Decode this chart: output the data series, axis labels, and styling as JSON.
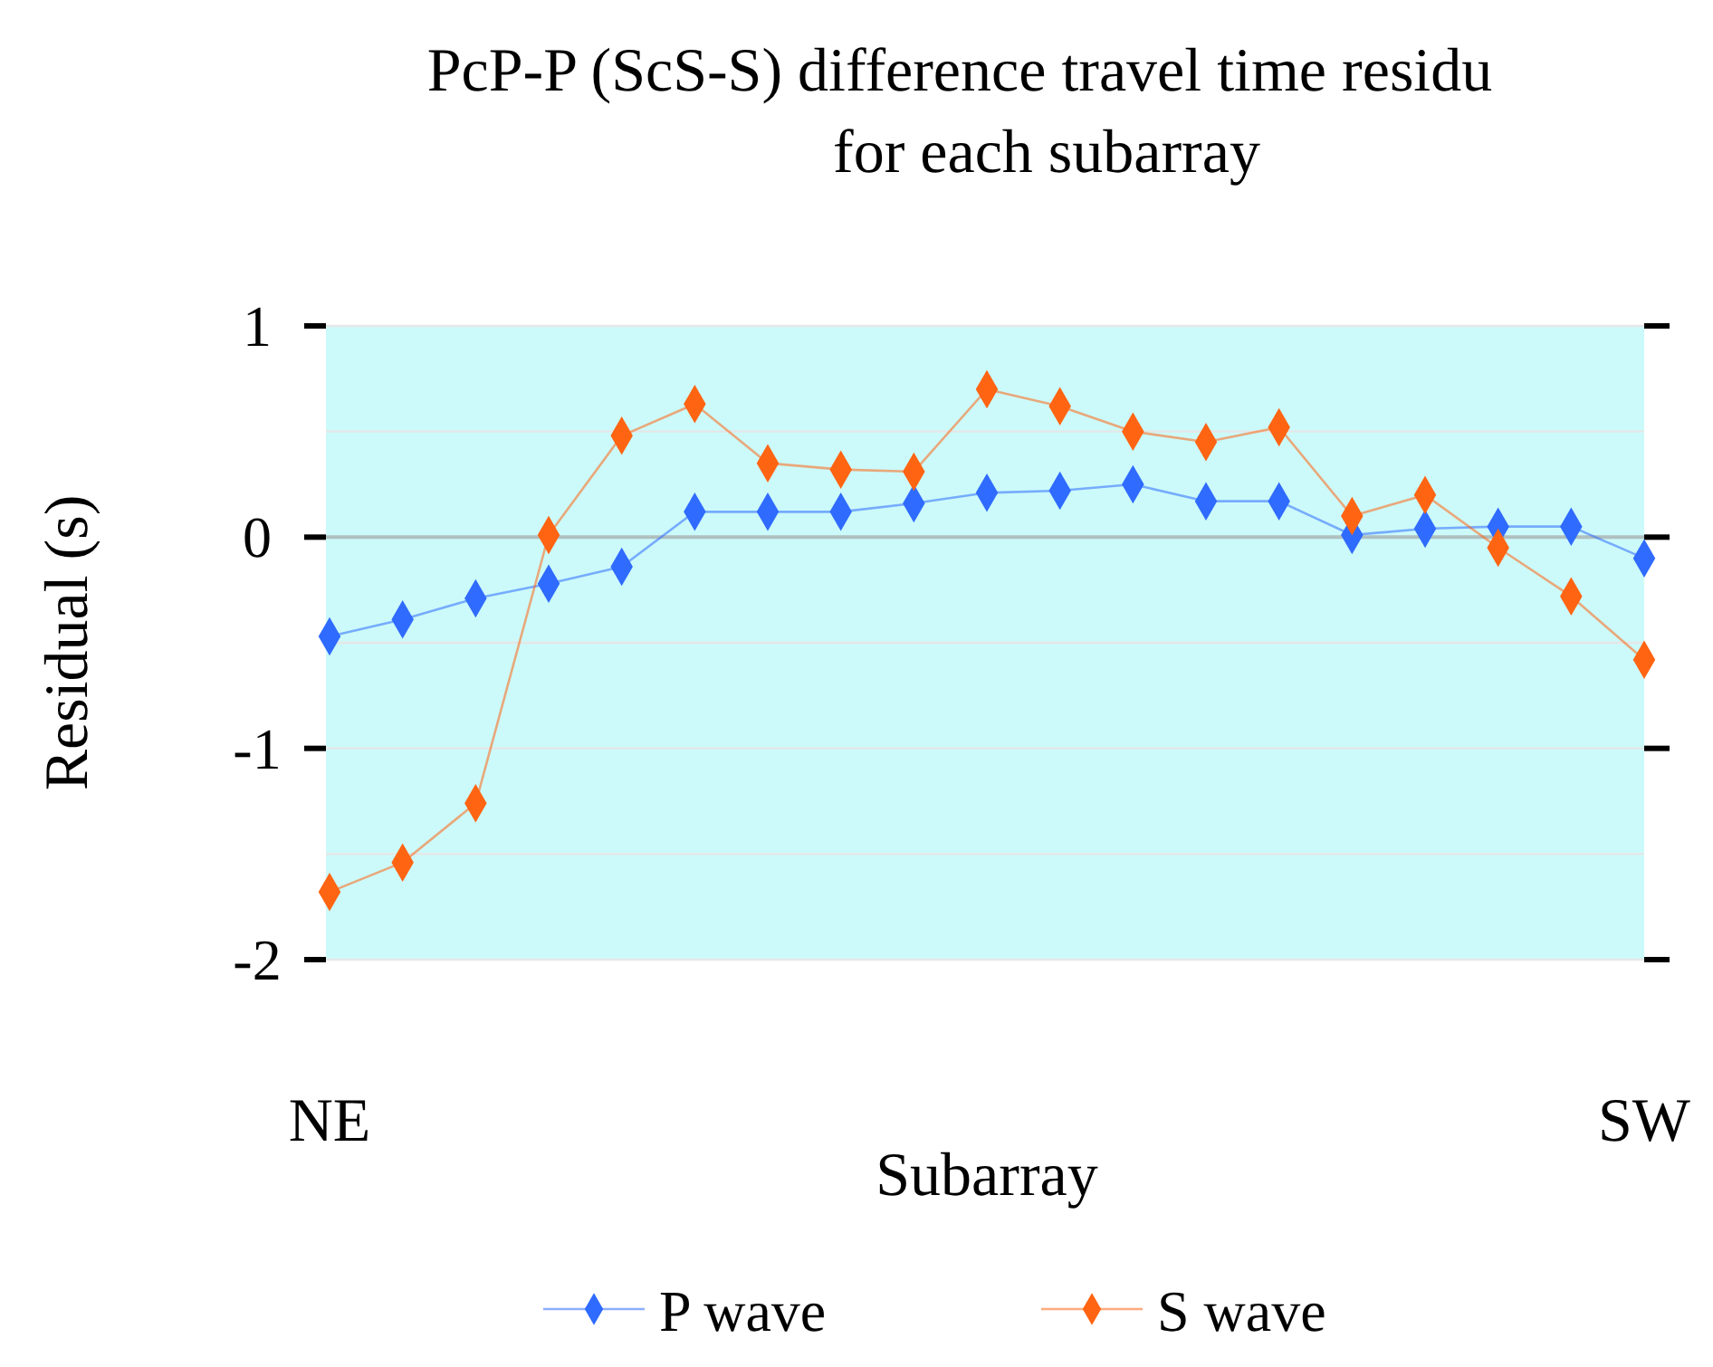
{
  "chart_data": {
    "type": "line",
    "title": "PcP-P (ScS-S) difference travel time residu\nfor each subarray",
    "xlabel": "Subarray",
    "ylabel": "Residual (s)",
    "categories": [
      "NE",
      null,
      null,
      null,
      null,
      null,
      null,
      null,
      null,
      null,
      null,
      null,
      null,
      null,
      null,
      null,
      null,
      null,
      "SW"
    ],
    "series": [
      {
        "name": "P wave",
        "color": "#2f6bff",
        "values": [
          -0.47,
          -0.39,
          -0.29,
          -0.22,
          -0.14,
          0.12,
          0.12,
          0.12,
          0.16,
          0.21,
          0.22,
          0.25,
          0.17,
          0.17,
          0.01,
          0.04,
          0.05,
          0.05,
          -0.1
        ]
      },
      {
        "name": "S wave",
        "color": "#ff6412",
        "values": [
          -1.68,
          -1.54,
          -1.26,
          0.01,
          0.48,
          0.63,
          0.35,
          0.32,
          0.31,
          0.7,
          0.62,
          0.5,
          0.45,
          0.52,
          0.1,
          0.2,
          -0.05,
          -0.28,
          -0.58
        ]
      }
    ],
    "ylim": [
      -2,
      1
    ],
    "yticks": [
      -2,
      {
        "value": -1.5,
        "label": null
      },
      -1,
      {
        "value": -0.5,
        "label": null
      },
      0,
      {
        "value": 0.5,
        "label": null
      },
      1
    ],
    "grid": "y",
    "legend": "bottom",
    "marker": "diamond",
    "line_style": "solid"
  }
}
